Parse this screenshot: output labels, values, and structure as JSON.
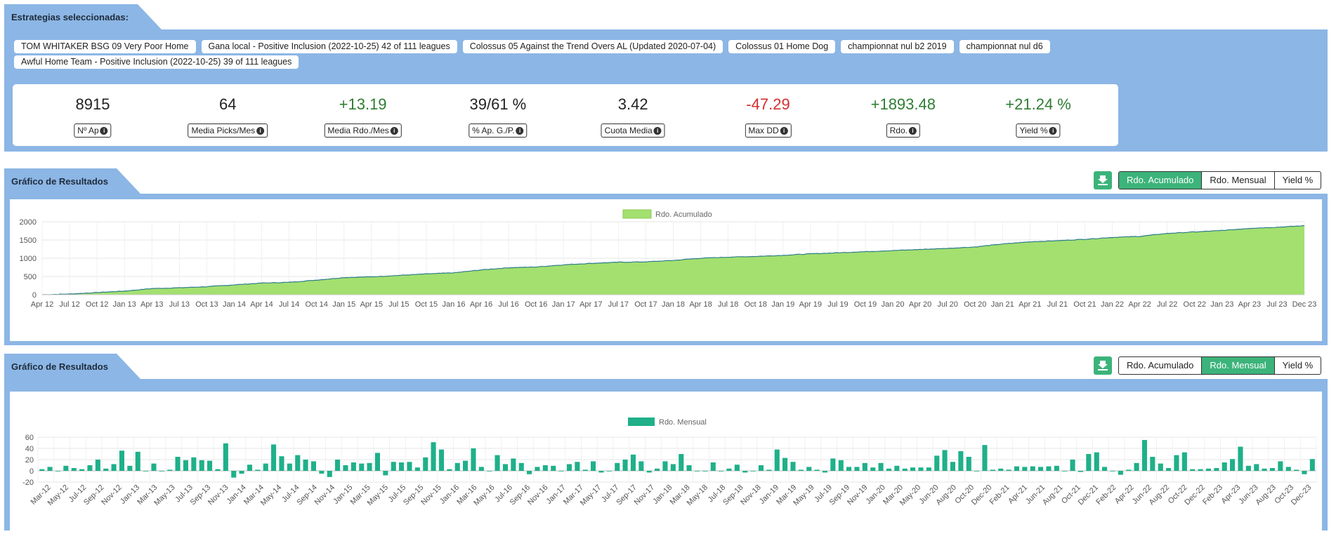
{
  "strategies": {
    "title": "Estrategias seleccionadas:",
    "row1": [
      "TOM WHITAKER BSG 09 Very Poor Home",
      "Gana local - Positive Inclusion (2022-10-25) 42 of 111 leagues",
      "Colossus 05 Against the Trend Overs AL (Updated 2020-07-04)",
      "Colossus 01 Home Dog",
      "championnat nul b2 2019",
      "championnat nul d6"
    ],
    "row2": [
      "Awful Home Team - Positive Inclusion (2022-10-25) 39 of 111 leagues"
    ]
  },
  "stats": [
    {
      "value": "8915",
      "label": "Nº Ap",
      "tone": "neutral"
    },
    {
      "value": "64",
      "label": "Media Picks/Mes",
      "tone": "neutral"
    },
    {
      "value": "+13.19",
      "label": "Media Rdo./Mes",
      "tone": "pos"
    },
    {
      "value": "39/61 %",
      "label": "% Ap. G./P.",
      "tone": "neutral"
    },
    {
      "value": "3.42",
      "label": "Cuota Media",
      "tone": "neutral"
    },
    {
      "value": "-47.29",
      "label": "Max DD",
      "tone": "neg"
    },
    {
      "value": "+1893.48",
      "label": "Rdo.",
      "tone": "pos"
    },
    {
      "value": "+21.24 %",
      "label": "Yield %",
      "tone": "pos"
    }
  ],
  "chart1_section": {
    "title": "Gráfico de Resultados",
    "buttons": [
      "Rdo. Acumulado",
      "Rdo. Mensual",
      "Yield %"
    ],
    "active": 0
  },
  "chart2_section": {
    "title": "Gráfico de Resultados",
    "buttons": [
      "Rdo. Acumulado",
      "Rdo. Mensual",
      "Yield %"
    ],
    "active": 1
  },
  "colors": {
    "panel": "#8cb6e5",
    "accent_green": "#3cb37a",
    "area_fill": "#a3e06f",
    "area_line": "#2e7d8a",
    "bar_fill": "#1fb08a"
  },
  "chart_data": [
    {
      "type": "area",
      "legend": "Rdo. Acumulado",
      "x_ticks": [
        "Apr 12",
        "Jul 12",
        "Oct 12",
        "Jan 13",
        "Apr 13",
        "Jul 13",
        "Oct 13",
        "Jan 14",
        "Apr 14",
        "Jul 14",
        "Oct 14",
        "Jan 15",
        "Apr 15",
        "Jul 15",
        "Oct 15",
        "Jan 16",
        "Apr 16",
        "Jul 16",
        "Oct 16",
        "Jan 17",
        "Apr 17",
        "Jul 17",
        "Oct 17",
        "Jan 18",
        "Apr 18",
        "Jul 18",
        "Oct 18",
        "Jan 19",
        "Apr 19",
        "Jul 19",
        "Oct 19",
        "Jan 20",
        "Apr 20",
        "Jul 20",
        "Oct 20",
        "Jan 21",
        "Apr 21",
        "Jul 21",
        "Oct 21",
        "Jan 22",
        "Apr 22",
        "Jul 22",
        "Oct 22",
        "Jan 23",
        "Apr 23",
        "Jul 23",
        "Dec 23"
      ],
      "y_ticks": [
        0,
        500,
        1000,
        1500,
        2000
      ],
      "ylim": [
        0,
        2000
      ],
      "series_anchors": {
        "x": [
          "Apr 12",
          "Jul 12",
          "Oct 12",
          "Jan 13",
          "Apr 13",
          "Jul 13",
          "Oct 13",
          "Jan 14",
          "Apr 14",
          "Jul 14",
          "Oct 14",
          "Jan 15",
          "Apr 15",
          "Jul 15",
          "Oct 15",
          "Jan 16",
          "Apr 16",
          "Jul 16",
          "Oct 16",
          "Jan 17",
          "Apr 17",
          "Jul 17",
          "Oct 17",
          "Jan 18",
          "Apr 18",
          "Jul 18",
          "Oct 18",
          "Jan 19",
          "Apr 19",
          "Jul 19",
          "Oct 19",
          "Jan 20",
          "Apr 20",
          "Jul 20",
          "Oct 20",
          "Jan 21",
          "Apr 21",
          "Jul 21",
          "Oct 21",
          "Jan 22",
          "Apr 22",
          "Jul 22",
          "Oct 22",
          "Jan 23",
          "Apr 23",
          "Jul 23",
          "Dec 23"
        ],
        "y": [
          0,
          20,
          60,
          100,
          170,
          190,
          220,
          270,
          320,
          340,
          400,
          470,
          490,
          530,
          570,
          600,
          680,
          740,
          760,
          820,
          860,
          890,
          900,
          940,
          1000,
          1030,
          1050,
          1080,
          1120,
          1150,
          1180,
          1210,
          1240,
          1270,
          1310,
          1390,
          1450,
          1480,
          1520,
          1570,
          1600,
          1680,
          1720,
          1760,
          1820,
          1850,
          1890
        ]
      }
    },
    {
      "type": "bar",
      "legend": "Rdo. Mensual",
      "x_tick_labels": [
        "Mar-12",
        "May-12",
        "Jul-12",
        "Sep-12",
        "Nov-12",
        "Jan-13",
        "Mar-13",
        "May-13",
        "Jul-13",
        "Sep-13",
        "Nov-13",
        "Jan-14",
        "Mar-14",
        "May-14",
        "Jul-14",
        "Sep-14",
        "Nov-14",
        "Jan-15",
        "Mar-15",
        "May-15",
        "Jul-15",
        "Sep-15",
        "Nov-15",
        "Jan-16",
        "Mar-16",
        "May-16",
        "Jul-16",
        "Sep-16",
        "Nov-16",
        "Jan-17",
        "Mar-17",
        "May-17",
        "Jul-17",
        "Sep-17",
        "Nov-17",
        "Jan-18",
        "Mar-18",
        "May-18",
        "Jul-18",
        "Sep-18",
        "Nov-18",
        "Jan-19",
        "Mar-19",
        "May-19",
        "Jul-19",
        "Sep-19",
        "Nov-19",
        "Jan-20",
        "Mar-20",
        "May-20",
        "Jun-20",
        "Aug-20",
        "Oct-20",
        "Dec-20",
        "Feb-21",
        "Apr-21",
        "Jun-21",
        "Aug-21",
        "Oct-21",
        "Dec-21",
        "Feb-22",
        "Apr-22",
        "Jun-22",
        "Aug-22",
        "Oct-22",
        "Dec-22",
        "Feb-23",
        "Apr-23",
        "Jun-23",
        "Aug-23",
        "Oct-23",
        "Dec-23"
      ],
      "y_ticks": [
        -20,
        0,
        20,
        40,
        60
      ],
      "ylim": [
        -20,
        60
      ],
      "values": [
        3,
        7,
        0,
        9,
        5,
        3,
        10,
        20,
        4,
        12,
        36,
        9,
        34,
        0,
        13,
        0,
        2,
        25,
        19,
        24,
        19,
        18,
        3,
        49,
        -12,
        -5,
        11,
        2,
        13,
        47,
        26,
        13,
        28,
        20,
        17,
        -5,
        -11,
        20,
        10,
        15,
        13,
        14,
        32,
        -8,
        16,
        15,
        16,
        6,
        24,
        51,
        38,
        3,
        14,
        18,
        40,
        7,
        0,
        28,
        12,
        22,
        14,
        -6,
        7,
        10,
        9,
        0,
        12,
        16,
        2,
        17,
        -3,
        0,
        14,
        20,
        29,
        17,
        -3,
        4,
        17,
        12,
        30,
        10,
        0,
        -1,
        15,
        0,
        4,
        11,
        -3,
        0,
        10,
        2,
        38,
        23,
        16,
        2,
        7,
        2,
        -3,
        22,
        19,
        7,
        7,
        14,
        6,
        14,
        4,
        9,
        4,
        6,
        6,
        6,
        27,
        37,
        16,
        35,
        25,
        -1,
        46,
        2,
        4,
        2,
        8,
        7,
        8,
        7,
        8,
        9,
        -1,
        20,
        -2,
        30,
        33,
        7,
        0,
        -7,
        2,
        14,
        55,
        25,
        13,
        5,
        28,
        33,
        3,
        3,
        4,
        5,
        15,
        21,
        43,
        9,
        12,
        4,
        5,
        17,
        7,
        2,
        -6,
        21
      ]
    }
  ]
}
